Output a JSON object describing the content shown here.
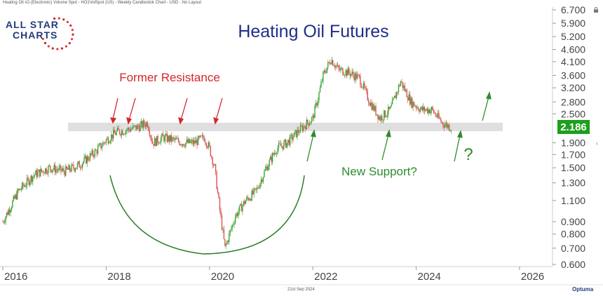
{
  "header": {
    "caption": "Heating Oil #2-(Electronic) Volume Spot - HO1VolSpot (US) - Weekly Candlestick Chart - USD - No Layout"
  },
  "logo": {
    "line1": "ALL STAR",
    "line2": "CHARTS"
  },
  "footer": {
    "date": "21st Sep 2024",
    "brand": "Optuma"
  },
  "colors": {
    "title": "#1f2d8a",
    "resistance": "#d62728",
    "support": "#2e8b2e",
    "up_candle": "#3aa63a",
    "down_candle": "#d9534f",
    "price_badge": "#1e9e1e",
    "band": "#d9d9d9"
  },
  "icons": {
    "lock": "lock-icon",
    "expand": "chevron-left-icon",
    "logo_stars": "star-ring-icon"
  },
  "chart_data": {
    "type": "candlestick",
    "title": "Heating Oil Futures",
    "y_scale": "log",
    "ylim": [
      0.6,
      6.7
    ],
    "xlim": [
      2016,
      2026.3
    ],
    "y_ticks": [
      "6.700",
      "5.900",
      "5.200",
      "4.600",
      "4.100",
      "3.600",
      "3.200",
      "2.800",
      "2.500",
      "2.186",
      "1.900",
      "1.700",
      "1.500",
      "1.300",
      "1.100",
      "0.900",
      "0.800",
      "0.700",
      "0.600"
    ],
    "x_ticks": [
      "2016",
      "2018",
      "2020",
      "2022",
      "2024",
      "2026"
    ],
    "last_price": "2.186",
    "series": [
      {
        "x": [
          2016.0,
          2016.3,
          2016.6,
          2016.9,
          2017.2,
          2017.5,
          2017.8,
          2018.0,
          2018.2,
          2018.4,
          2018.6,
          2018.8,
          2018.9,
          2019.1,
          2019.3,
          2019.5,
          2019.7,
          2019.9,
          2020.0,
          2020.1,
          2020.2,
          2020.3,
          2020.5,
          2020.7,
          2020.9,
          2021.1,
          2021.3,
          2021.5,
          2021.7,
          2021.9,
          2022.0,
          2022.1,
          2022.2,
          2022.35,
          2022.5,
          2022.7,
          2022.9,
          2023.1,
          2023.3,
          2023.5,
          2023.7,
          2023.9,
          2024.1,
          2024.3,
          2024.5,
          2024.7
        ],
        "y": [
          0.9,
          1.2,
          1.4,
          1.5,
          1.45,
          1.55,
          1.75,
          1.95,
          2.1,
          2.15,
          2.2,
          2.3,
          1.9,
          2.0,
          1.95,
          1.9,
          1.9,
          2.0,
          1.8,
          1.5,
          1.0,
          0.7,
          0.95,
          1.1,
          1.2,
          1.5,
          1.8,
          1.9,
          2.1,
          2.3,
          2.4,
          2.9,
          3.6,
          4.2,
          3.8,
          3.7,
          3.5,
          2.8,
          2.4,
          2.6,
          3.4,
          2.8,
          2.6,
          2.6,
          2.3,
          2.186
        ]
      }
    ],
    "annotations": {
      "resistance_label": "Former Resistance",
      "support_label": "New Support?",
      "question": "?"
    }
  }
}
